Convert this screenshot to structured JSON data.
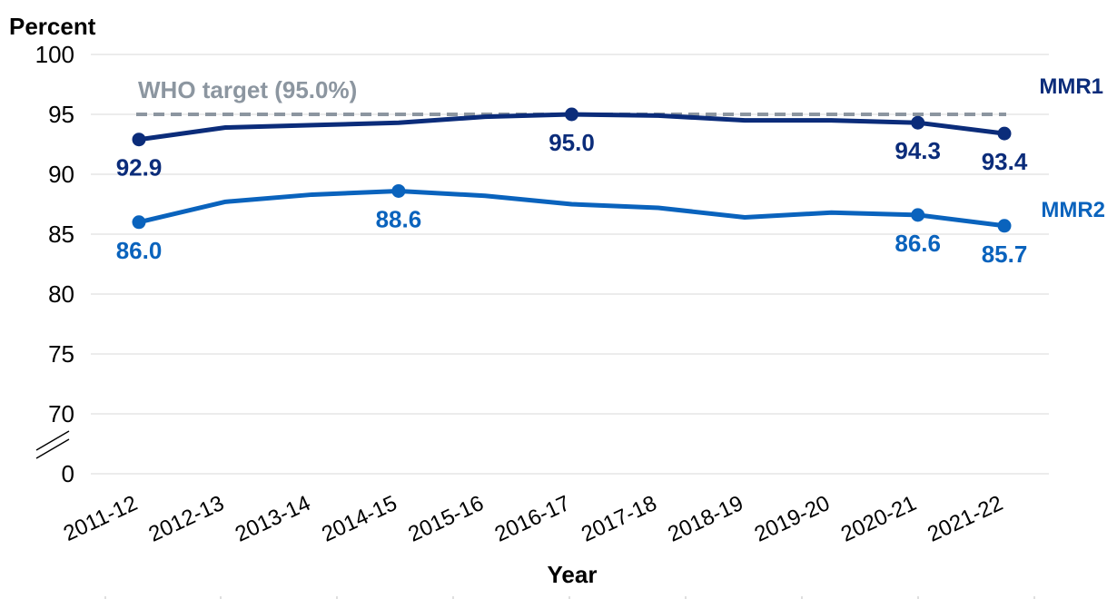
{
  "chart_data": {
    "type": "line",
    "ylabel": "Percent",
    "xlabel": "Year",
    "categories": [
      "2011-12",
      "2012-13",
      "2013-14",
      "2014-15",
      "2015-16",
      "2016-17",
      "2017-18",
      "2018-19",
      "2019-20",
      "2020-21",
      "2021-22"
    ],
    "y_ticks": [
      "100",
      "95",
      "90",
      "85",
      "80",
      "75",
      "70",
      "0"
    ],
    "ylim": [
      70,
      100
    ],
    "axis_break": true,
    "grid": true,
    "series": [
      {
        "name": "MMR1",
        "color": "#0b2c7a",
        "values": [
          92.9,
          93.9,
          94.1,
          94.3,
          94.8,
          95.0,
          94.9,
          94.5,
          94.5,
          94.3,
          93.4
        ],
        "labeled_points": [
          0,
          5,
          9,
          10
        ],
        "data_labels": [
          "92.9",
          "95.0",
          "94.3",
          "93.4"
        ]
      },
      {
        "name": "MMR2",
        "color": "#0a63bd",
        "values": [
          86.0,
          87.7,
          88.3,
          88.6,
          88.2,
          87.5,
          87.2,
          86.4,
          86.8,
          86.6,
          85.7
        ],
        "labeled_points": [
          0,
          3,
          9,
          10
        ],
        "data_labels": [
          "86.0",
          "88.6",
          "86.6",
          "85.7"
        ]
      }
    ],
    "reference_line": {
      "label": "WHO target (95.0%)",
      "value": 95.0,
      "color": "#8c96a0"
    }
  }
}
